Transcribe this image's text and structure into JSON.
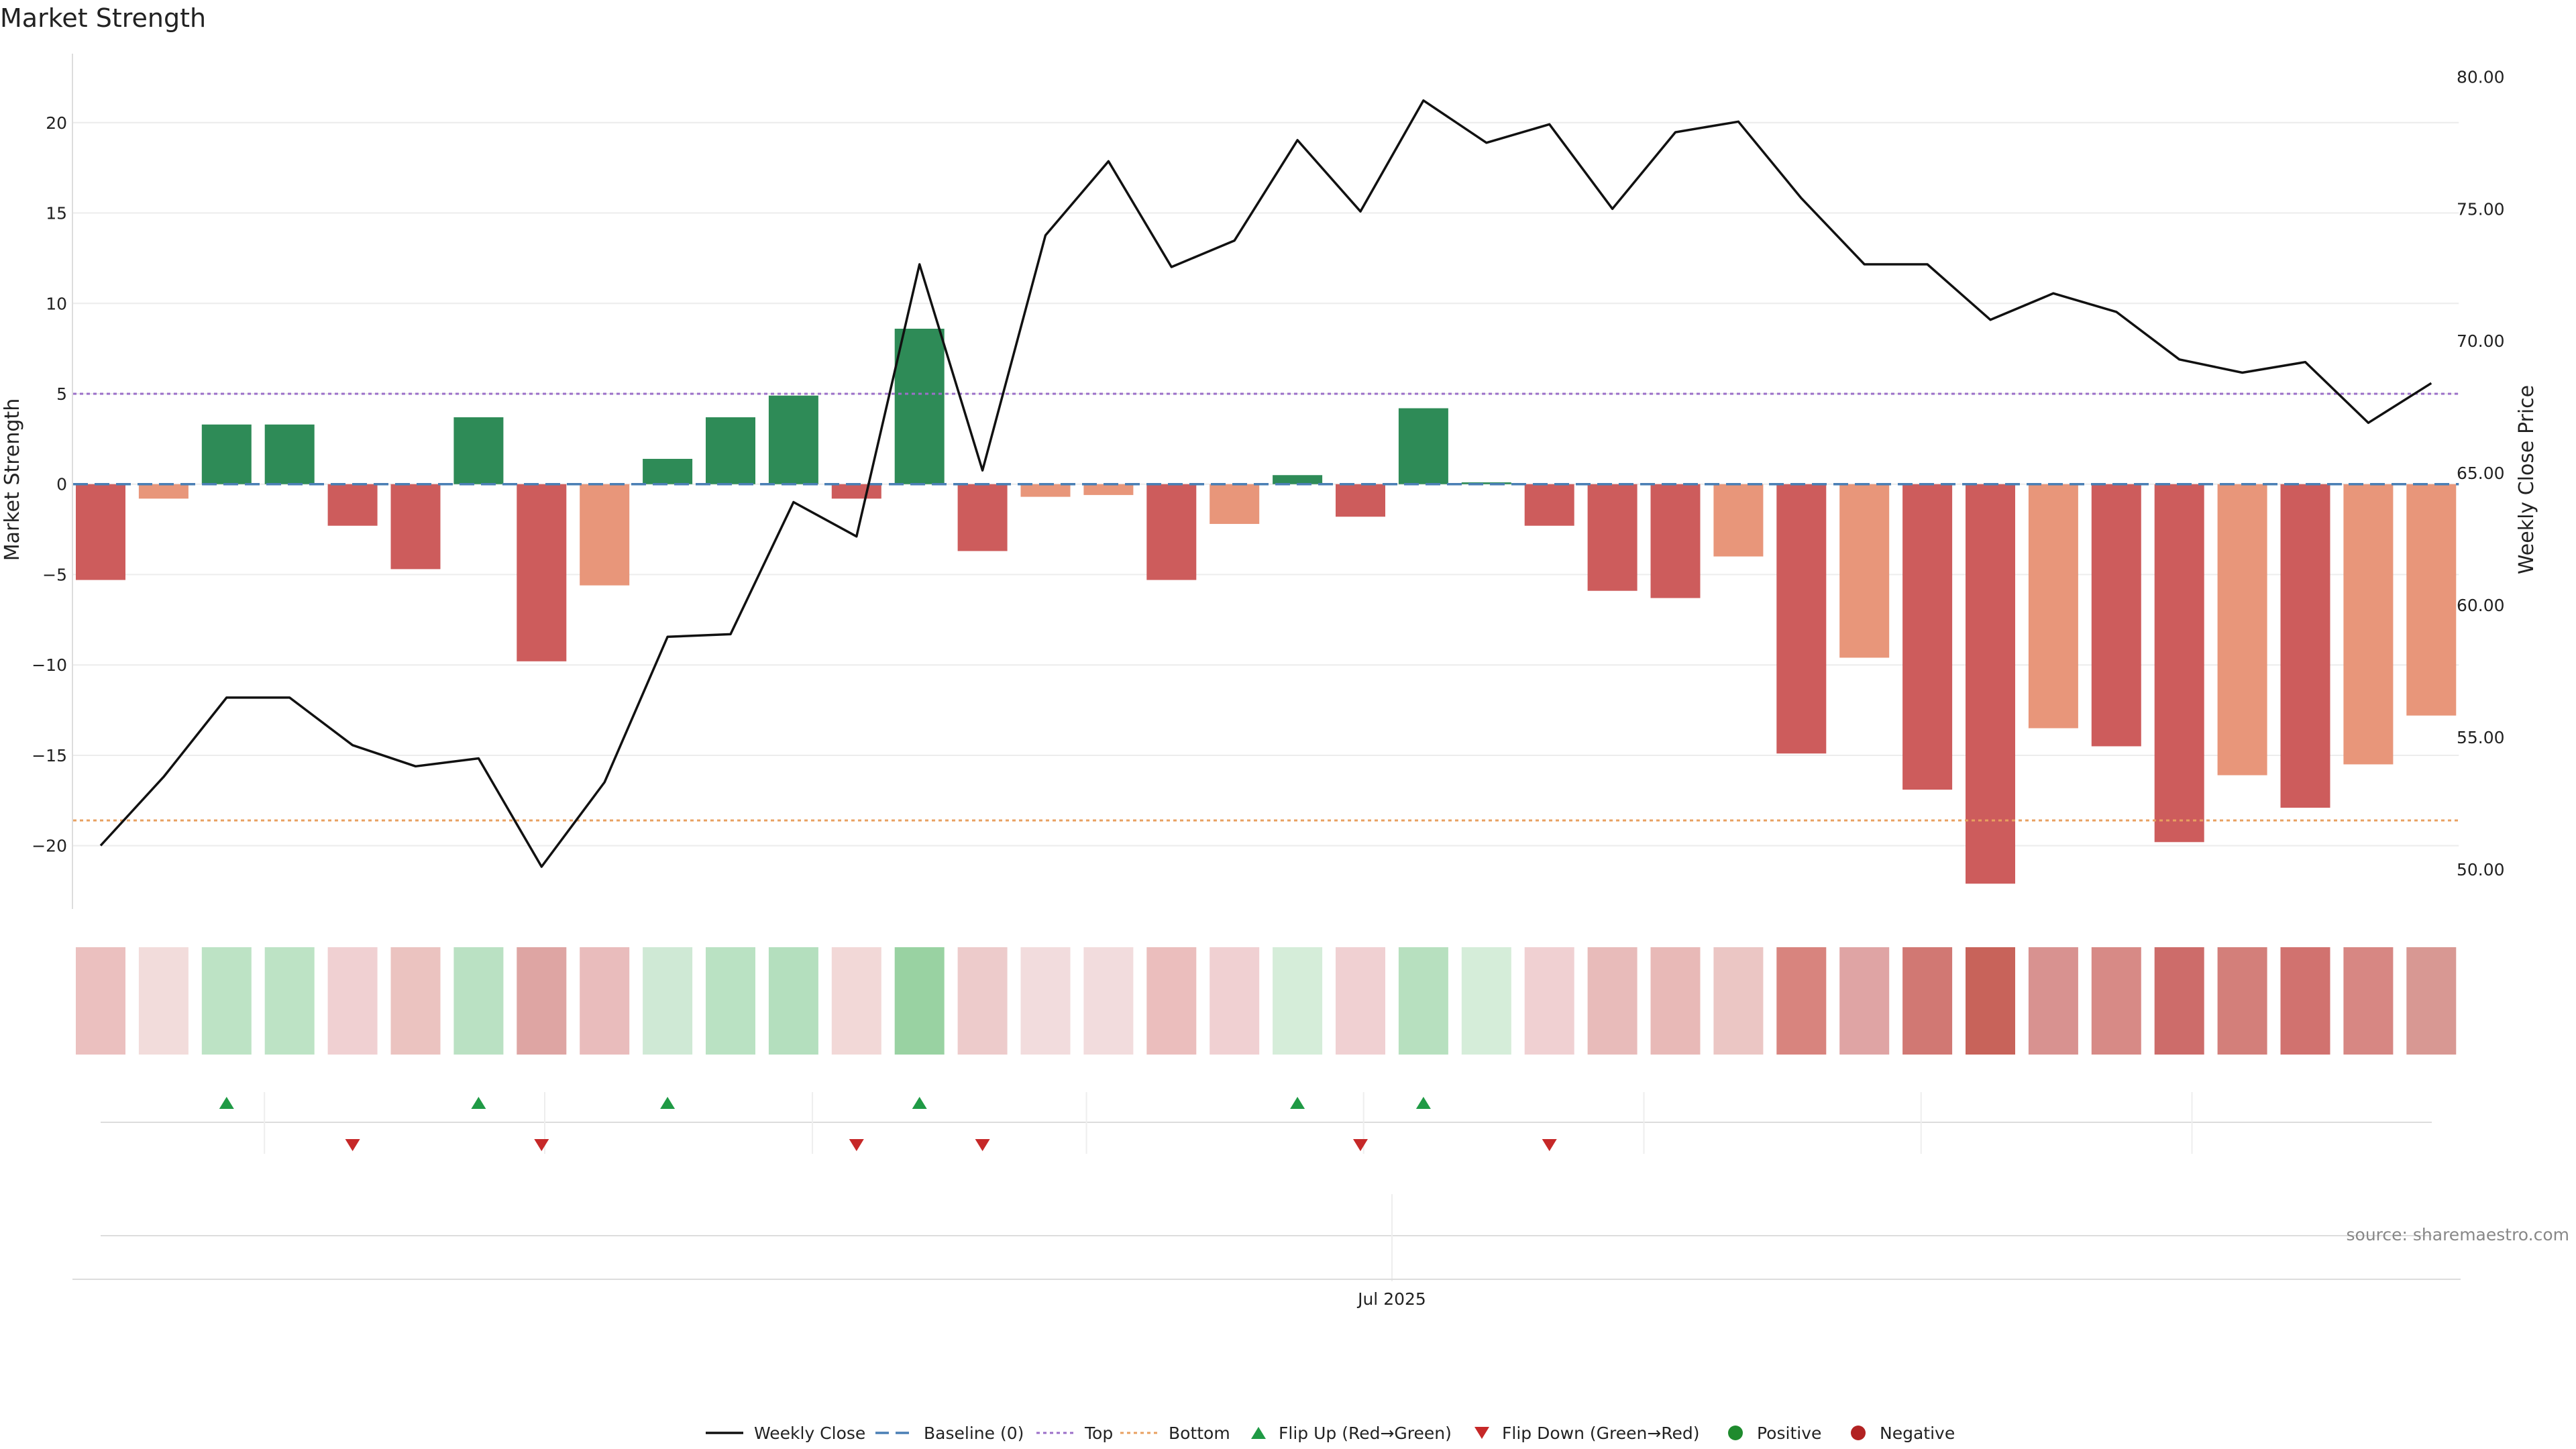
{
  "chart_data": {
    "type": "bar",
    "title": "Market Strength",
    "ylabel_left": "Market Strength",
    "ylabel_right": "Weekly Close Price",
    "ylim_left": [
      -23.5,
      24
    ],
    "ylim_right": [
      48.5,
      81
    ],
    "yticks_left": [
      -20,
      -15,
      -10,
      -5,
      0,
      5,
      10,
      15,
      20
    ],
    "yticks_right": [
      "50.00",
      "55.00",
      "60.00",
      "65.00",
      "70.00",
      "75.00",
      "80.00"
    ],
    "x_tick_labels": [
      {
        "index": 20.5,
        "label": "Jul 2025"
      }
    ],
    "top_line": 5,
    "bottom_line": -18.6,
    "strength": [
      -5.3,
      -0.8,
      3.3,
      3.3,
      -2.3,
      -4.7,
      3.7,
      -9.8,
      -5.6,
      1.4,
      3.7,
      4.9,
      -0.8,
      8.6,
      -3.7,
      -0.7,
      -0.6,
      -5.3,
      -2.2,
      0.5,
      -1.8,
      4.2,
      0.1,
      -2.3,
      -5.9,
      -6.3,
      -4.0,
      -14.9,
      -9.6,
      -16.9,
      -22.1,
      -13.5,
      -14.5,
      -19.8,
      -16.1,
      -17.9,
      -15.5,
      -12.8
    ],
    "bar_colors": [
      "#cd5c5c",
      "#e8967a",
      "#2e8b57",
      "#2e8b57",
      "#cd5c5c",
      "#cd5c5c",
      "#2e8b57",
      "#cd5c5c",
      "#e8967a",
      "#2e8b57",
      "#2e8b57",
      "#2e8b57",
      "#cd5c5c",
      "#2e8b57",
      "#cd5c5c",
      "#e8967a",
      "#e8967a",
      "#cd5c5c",
      "#e8967a",
      "#2e8b57",
      "#cd5c5c",
      "#2e8b57",
      "#2e8b57",
      "#cd5c5c",
      "#cd5c5c",
      "#cd5c5c",
      "#e8967a",
      "#cd5c5c",
      "#e8967a",
      "#cd5c5c",
      "#cd5c5c",
      "#e8967a",
      "#cd5c5c",
      "#cd5c5c",
      "#e8967a",
      "#cd5c5c",
      "#e8967a",
      "#e8967a"
    ],
    "weekly_close": [
      50.9,
      53.5,
      56.5,
      56.5,
      54.7,
      53.9,
      54.2,
      50.1,
      53.3,
      58.8,
      58.9,
      63.9,
      62.6,
      72.9,
      65.1,
      74.0,
      76.8,
      72.8,
      73.8,
      77.6,
      74.9,
      79.1,
      77.5,
      78.2,
      75.0,
      77.9,
      78.3,
      75.4,
      72.9,
      72.9,
      70.8,
      71.8,
      71.1,
      69.3,
      68.8,
      69.2,
      66.9,
      68.4
    ],
    "heat_colors": [
      "#ebc0bf",
      "#f2dcdb",
      "#bde3c5",
      "#bde3c5",
      "#f0d0d2",
      "#ebc3c0",
      "#bae1c3",
      "#dea5a3",
      "#e9bcbc",
      "#cfe9d5",
      "#bae2c3",
      "#b4dfbe",
      "#f2d8d7",
      "#99d2a2",
      "#edcbcb",
      "#f2dcdd",
      "#f2dcdd",
      "#ebbebd",
      "#f0d0d2",
      "#d5edd9",
      "#f0d0d2",
      "#b7e0bf",
      "#d5edd9",
      "#f0d0d2",
      "#e8bbba",
      "#e8b9b7",
      "#ebc6c4",
      "#d8847e",
      "#dfa4a4",
      "#d17873",
      "#c8635a",
      "#d89290",
      "#d78a86",
      "#cd6c6a",
      "#d37f7a",
      "#d1726f",
      "#d78783",
      "#d89893"
    ],
    "flip_up_indices": [
      2,
      6,
      9,
      13,
      19,
      21
    ],
    "flip_down_indices": [
      4,
      7,
      12,
      14,
      20,
      23
    ],
    "colors": {
      "green": "#2e8b57",
      "red": "#cd5c5c",
      "salmon": "#e8967a",
      "baseline": "#4a7fb5",
      "top": "#9b6fc8",
      "bottom": "#e8a060",
      "flip_up": "#1f9a45",
      "flip_down": "#c62828",
      "positive": "#1f8b2e",
      "negative": "#b22222"
    },
    "legend": [
      {
        "label": "Weekly Close",
        "kind": "line-solid",
        "color": "#111111"
      },
      {
        "label": "Baseline (0)",
        "kind": "line-dashed",
        "color": "#4a7fb5"
      },
      {
        "label": "Top",
        "kind": "line-dotted",
        "color": "#9b6fc8"
      },
      {
        "label": "Bottom",
        "kind": "line-dotted",
        "color": "#e8a060"
      },
      {
        "label": "Flip Up (Red→Green)",
        "kind": "triangle-up",
        "color": "#1f9a45"
      },
      {
        "label": "Flip Down (Green→Red)",
        "kind": "triangle-down",
        "color": "#c62828"
      },
      {
        "label": "Positive",
        "kind": "dot",
        "color": "#1f8b2e"
      },
      {
        "label": "Negative",
        "kind": "dot",
        "color": "#b22222"
      }
    ],
    "source": "source: sharemaestro.com"
  }
}
